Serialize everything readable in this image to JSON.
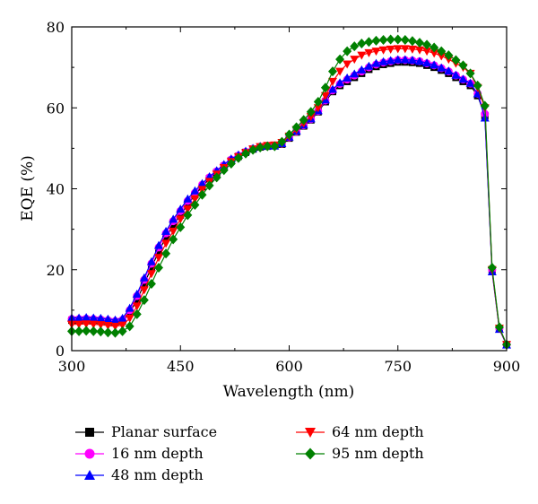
{
  "chart_data": {
    "type": "line",
    "xlabel": "Wavelength (nm)",
    "ylabel": "EQE (%)",
    "xlim": [
      300,
      900
    ],
    "ylim": [
      0,
      80
    ],
    "xticks": [
      300,
      450,
      600,
      750,
      900
    ],
    "yticks": [
      0,
      20,
      40,
      60,
      80
    ],
    "grid": false,
    "legend_position": "bottom",
    "x": [
      300,
      310,
      320,
      330,
      340,
      350,
      360,
      370,
      380,
      390,
      400,
      410,
      420,
      430,
      440,
      450,
      460,
      470,
      480,
      490,
      500,
      510,
      520,
      530,
      540,
      550,
      560,
      570,
      580,
      590,
      600,
      610,
      620,
      630,
      640,
      650,
      660,
      670,
      680,
      690,
      700,
      710,
      720,
      730,
      740,
      750,
      760,
      770,
      780,
      790,
      800,
      810,
      820,
      830,
      840,
      850,
      860,
      870,
      880,
      890,
      900
    ],
    "series": [
      {
        "name": "Planar surface",
        "color": "#000000",
        "marker": "square",
        "values": [
          7.5,
          7.5,
          7.6,
          7.5,
          7.4,
          7.2,
          7.0,
          7.3,
          9.5,
          12.5,
          16.5,
          20.5,
          24.5,
          28.0,
          31.0,
          33.5,
          36.0,
          38.5,
          40.5,
          42.5,
          44.0,
          45.5,
          47.0,
          48.0,
          49.0,
          49.8,
          50.3,
          50.5,
          50.6,
          51.0,
          52.5,
          54.0,
          55.5,
          57.0,
          59.0,
          61.5,
          64.0,
          65.5,
          66.5,
          67.5,
          68.5,
          69.5,
          70.2,
          70.7,
          71.0,
          71.3,
          71.3,
          71.2,
          71.0,
          70.5,
          70.0,
          69.3,
          68.5,
          67.5,
          66.5,
          65.5,
          63.0,
          58.0,
          20.0,
          5.5,
          1.5
        ]
      },
      {
        "name": "16 nm depth",
        "color": "#ff00ff",
        "marker": "circle",
        "values": [
          7.8,
          7.8,
          7.9,
          7.8,
          7.7,
          7.5,
          7.3,
          7.6,
          10.0,
          13.5,
          17.5,
          21.5,
          25.5,
          29.0,
          32.0,
          34.5,
          37.0,
          39.0,
          41.0,
          42.8,
          44.3,
          45.8,
          47.2,
          48.2,
          49.1,
          49.9,
          50.4,
          50.6,
          50.7,
          51.2,
          52.7,
          54.2,
          55.7,
          57.2,
          59.2,
          61.8,
          64.3,
          65.9,
          67.0,
          68.0,
          69.0,
          70.0,
          70.7,
          71.2,
          71.5,
          71.8,
          71.8,
          71.7,
          71.5,
          71.0,
          70.5,
          69.8,
          69.0,
          68.0,
          67.0,
          66.0,
          63.5,
          58.5,
          20.0,
          5.5,
          1.5
        ]
      },
      {
        "name": "48 nm depth",
        "color": "#0000ff",
        "marker": "triangle-up",
        "values": [
          8.1,
          8.1,
          8.2,
          8.1,
          8.0,
          7.8,
          7.6,
          8.0,
          10.5,
          14.0,
          18.0,
          22.0,
          26.0,
          29.5,
          32.5,
          35.0,
          37.5,
          39.5,
          41.3,
          43.0,
          44.5,
          46.0,
          47.4,
          48.4,
          49.3,
          50.0,
          50.5,
          50.6,
          50.6,
          51.2,
          52.8,
          54.3,
          55.8,
          57.3,
          59.3,
          62.0,
          64.6,
          66.2,
          67.4,
          68.4,
          69.4,
          70.3,
          71.0,
          71.4,
          71.7,
          71.9,
          71.9,
          71.8,
          71.5,
          71.1,
          70.6,
          69.9,
          69.1,
          68.1,
          67.1,
          66.1,
          63.5,
          57.5,
          19.5,
          5.3,
          1.4
        ]
      },
      {
        "name": "64 nm depth",
        "color": "#ff0000",
        "marker": "triangle-down",
        "values": [
          6.5,
          6.5,
          6.6,
          6.5,
          6.4,
          6.2,
          6.0,
          6.3,
          8.0,
          11.0,
          15.0,
          19.0,
          23.0,
          26.5,
          29.5,
          32.5,
          35.0,
          37.5,
          39.8,
          41.8,
          43.6,
          45.2,
          46.7,
          47.9,
          48.9,
          49.8,
          50.4,
          50.7,
          50.8,
          51.4,
          53.0,
          54.6,
          56.2,
          57.8,
          60.0,
          63.0,
          66.5,
          69.0,
          70.8,
          72.0,
          73.0,
          73.6,
          74.0,
          74.3,
          74.5,
          74.6,
          74.6,
          74.5,
          74.3,
          74.0,
          73.5,
          72.8,
          72.0,
          71.0,
          70.0,
          68.5,
          65.0,
          60.0,
          20.0,
          5.5,
          1.5
        ]
      },
      {
        "name": "95 nm depth",
        "color": "#008000",
        "marker": "diamond",
        "values": [
          4.8,
          4.8,
          4.9,
          4.8,
          4.7,
          4.5,
          4.4,
          4.8,
          6.0,
          9.0,
          12.5,
          16.5,
          20.5,
          24.0,
          27.5,
          30.5,
          33.5,
          36.0,
          38.5,
          40.8,
          42.8,
          44.6,
          46.2,
          47.6,
          48.7,
          49.6,
          50.2,
          50.5,
          50.5,
          51.6,
          53.4,
          55.2,
          57.0,
          59.0,
          61.5,
          65.0,
          69.0,
          72.0,
          74.0,
          75.2,
          75.9,
          76.3,
          76.6,
          76.8,
          76.9,
          76.9,
          76.8,
          76.5,
          76.1,
          75.6,
          74.9,
          74.0,
          73.0,
          71.8,
          70.5,
          68.5,
          65.5,
          60.5,
          20.5,
          5.8,
          1.5
        ]
      }
    ],
    "legend_columns": [
      [
        "Planar surface",
        "16 nm depth",
        "48 nm depth"
      ],
      [
        "64 nm depth",
        "95 nm depth"
      ]
    ]
  }
}
